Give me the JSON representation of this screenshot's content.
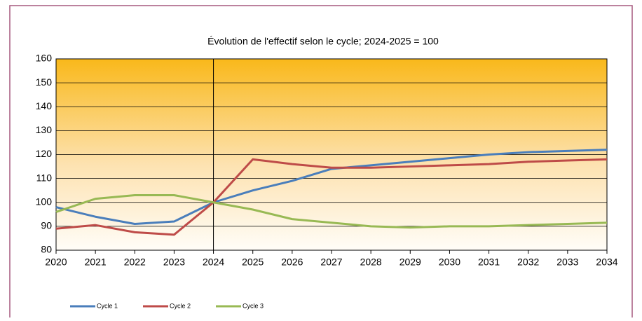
{
  "chart_data": {
    "type": "line",
    "title": "Évolution de l'effectif selon le cycle; 2024-2025 = 100",
    "categories": [
      "2020",
      "2021",
      "2022",
      "2023",
      "2024",
      "2025",
      "2026",
      "2027",
      "2028",
      "2029",
      "2030",
      "2031",
      "2032",
      "2033",
      "2034"
    ],
    "series": [
      {
        "name": "Cycle 1",
        "color": "#4a7ebb",
        "values": [
          98,
          94,
          91,
          92,
          100,
          105,
          109,
          114,
          115.5,
          117,
          118.5,
          120,
          121,
          121.5,
          122
        ]
      },
      {
        "name": "Cycle 2",
        "color": "#be4b48",
        "values": [
          89,
          90.5,
          87.5,
          86.5,
          100,
          118,
          116,
          114.5,
          114.5,
          115,
          115.5,
          116,
          117,
          117.5,
          118
        ]
      },
      {
        "name": "Cycle 3",
        "color": "#98b954",
        "values": [
          96,
          101.5,
          103,
          103,
          100,
          97,
          93,
          91.5,
          90,
          89.5,
          90,
          90,
          90.5,
          91,
          91.5
        ]
      }
    ],
    "ylim": [
      80,
      160
    ],
    "yticks": [
      80,
      90,
      100,
      110,
      120,
      130,
      140,
      150,
      160
    ],
    "grid": true,
    "vline": "2024",
    "legend": "bottom-left"
  }
}
